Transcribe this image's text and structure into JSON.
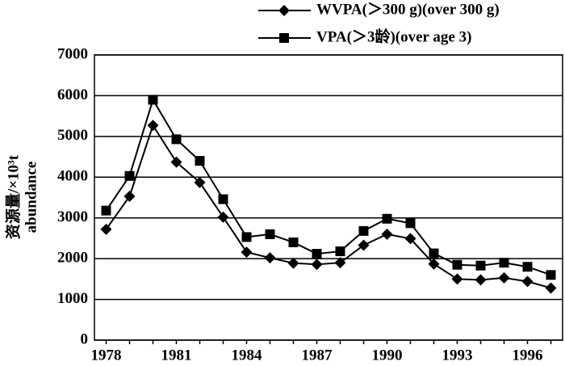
{
  "chart_data": {
    "type": "line",
    "y_label": [
      "资源量/×10³t",
      "abundance"
    ],
    "categories": [
      "1978",
      null,
      null,
      "1981",
      null,
      null,
      "1984",
      null,
      null,
      "1987",
      null,
      null,
      "1990",
      null,
      null,
      "1993",
      null,
      null,
      "1996",
      null
    ],
    "series": [
      {
        "name": "WVPA(＞300 g)(over 300 g)",
        "color": "#000000",
        "marker": "diamond",
        "values": [
          2720,
          3530,
          5270,
          4370,
          3870,
          3020,
          2160,
          2020,
          1890,
          1860,
          1900,
          2330,
          2600,
          2490,
          1870,
          1500,
          1480,
          1530,
          1440,
          1280
        ]
      },
      {
        "name": "VPA(＞3龄)(over age 3)",
        "color": "#000000",
        "marker": "square",
        "values": [
          3180,
          4030,
          5900,
          4930,
          4400,
          3460,
          2530,
          2600,
          2400,
          2120,
          2180,
          2680,
          2980,
          2870,
          2130,
          1850,
          1830,
          1900,
          1800,
          1600
        ]
      }
    ],
    "ylim": [
      0,
      7000
    ],
    "yticks": [
      0,
      1000,
      2000,
      3000,
      4000,
      5000,
      6000,
      7000
    ],
    "grid": true,
    "legend": "top-right"
  }
}
